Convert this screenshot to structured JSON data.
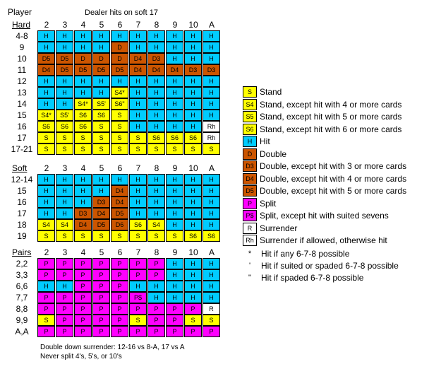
{
  "player_label": "Player",
  "title": "Dealer hits on soft 17",
  "dealer_cards": [
    "2",
    "3",
    "4",
    "5",
    "6",
    "7",
    "8",
    "9",
    "10",
    "A"
  ],
  "colors": {
    "S": "#ffff00",
    "H": "#00ccff",
    "D": "#cc5500",
    "P": "#ff00ff",
    "R": "#ffffff"
  },
  "sections": [
    {
      "name": "Hard",
      "rows": [
        {
          "label": "4-8",
          "cells": [
            "H",
            "H",
            "H",
            "H",
            "H",
            "H",
            "H",
            "H",
            "H",
            "H"
          ]
        },
        {
          "label": "9",
          "cells": [
            "H",
            "H",
            "H",
            "H",
            "D",
            "H",
            "H",
            "H",
            "H",
            "H"
          ]
        },
        {
          "label": "10",
          "cells": [
            "D5",
            "D5",
            "D",
            "D",
            "D",
            "D4",
            "D3",
            "H",
            "H",
            "H"
          ]
        },
        {
          "label": "11",
          "cells": [
            "D4",
            "D5",
            "D5",
            "D5",
            "D5",
            "D4",
            "D4",
            "D4",
            "D3",
            "D3"
          ]
        },
        {
          "label": "12",
          "cells": [
            "H",
            "H",
            "H",
            "H",
            "H",
            "H",
            "H",
            "H",
            "H",
            "H"
          ]
        },
        {
          "label": "13",
          "cells": [
            "H",
            "H",
            "H",
            "H",
            "S4*",
            "H",
            "H",
            "H",
            "H",
            "H"
          ]
        },
        {
          "label": "14",
          "cells": [
            "H",
            "H",
            "S4*",
            "S5'",
            "S6\"",
            "H",
            "H",
            "H",
            "H",
            "H"
          ]
        },
        {
          "label": "15",
          "cells": [
            "S4*",
            "S5'",
            "S6",
            "S6",
            "S",
            "H",
            "H",
            "H",
            "H",
            "H"
          ]
        },
        {
          "label": "16",
          "cells": [
            "S6",
            "S6",
            "S6",
            "S",
            "S",
            "H",
            "H",
            "H",
            "H",
            "Rh"
          ]
        },
        {
          "label": "17",
          "cells": [
            "S",
            "S",
            "S",
            "S",
            "S",
            "S",
            "S6",
            "S6",
            "S6",
            "Rh"
          ]
        },
        {
          "label": "17-21",
          "cells": [
            "S",
            "S",
            "S",
            "S",
            "S",
            "S",
            "S",
            "S",
            "S",
            "S"
          ]
        }
      ]
    },
    {
      "name": "Soft",
      "rows": [
        {
          "label": "12-14",
          "cells": [
            "H",
            "H",
            "H",
            "H",
            "H",
            "H",
            "H",
            "H",
            "H",
            "H"
          ]
        },
        {
          "label": "15",
          "cells": [
            "H",
            "H",
            "H",
            "H",
            "D4",
            "H",
            "H",
            "H",
            "H",
            "H"
          ]
        },
        {
          "label": "16",
          "cells": [
            "H",
            "H",
            "H",
            "D3",
            "D4",
            "H",
            "H",
            "H",
            "H",
            "H"
          ]
        },
        {
          "label": "17",
          "cells": [
            "H",
            "H",
            "D3",
            "D4",
            "D5",
            "H",
            "H",
            "H",
            "H",
            "H"
          ]
        },
        {
          "label": "18",
          "cells": [
            "S4",
            "S4",
            "D4",
            "D5",
            "D6",
            "S6",
            "S4",
            "H",
            "H",
            "H"
          ]
        },
        {
          "label": "19",
          "cells": [
            "S",
            "S",
            "S",
            "S",
            "S",
            "S",
            "S",
            "S",
            "S6",
            "S6"
          ]
        }
      ]
    },
    {
      "name": "Pairs",
      "rows": [
        {
          "label": "2,2",
          "cells": [
            "P",
            "P",
            "P",
            "P",
            "P",
            "P",
            "P",
            "H",
            "H",
            "H"
          ]
        },
        {
          "label": "3,3",
          "cells": [
            "P",
            "P",
            "P",
            "P",
            "P",
            "P",
            "P",
            "H",
            "H",
            "H"
          ]
        },
        {
          "label": "6,6",
          "cells": [
            "H",
            "H",
            "P",
            "P",
            "P",
            "H",
            "H",
            "H",
            "H",
            "H"
          ]
        },
        {
          "label": "7,7",
          "cells": [
            "P",
            "P",
            "P",
            "P",
            "P",
            "P$",
            "H",
            "H",
            "H",
            "H"
          ]
        },
        {
          "label": "8,8",
          "cells": [
            "P",
            "P",
            "P",
            "P",
            "P",
            "P",
            "P",
            "P",
            "P",
            "R"
          ]
        },
        {
          "label": "9,9",
          "cells": [
            "S",
            "P",
            "P",
            "P",
            "P",
            "S",
            "P",
            "P",
            "S",
            "S"
          ]
        },
        {
          "label": "A,A",
          "cells": [
            "P",
            "P",
            "P",
            "P",
            "P",
            "P",
            "P",
            "P",
            "P",
            "P"
          ]
        }
      ]
    }
  ],
  "legend": [
    {
      "code": "S",
      "type": "S",
      "text": "Stand"
    },
    {
      "code": "S4",
      "type": "S",
      "text": "Stand, except hit with 4 or more cards"
    },
    {
      "code": "S5",
      "type": "S",
      "text": "Stand, except hit with 5 or more cards"
    },
    {
      "code": "S6",
      "type": "S",
      "text": "Stand, except hit with 6 or more cards"
    },
    {
      "code": "H",
      "type": "H",
      "text": "Hit"
    },
    {
      "code": "D",
      "type": "D",
      "text": "Double"
    },
    {
      "code": "D3",
      "type": "D",
      "text": "Double, except hit with 3 or more cards"
    },
    {
      "code": "D4",
      "type": "D",
      "text": "Double, except hit with 4 or more cards"
    },
    {
      "code": "D5",
      "type": "D",
      "text": "Double, except hit with 5 or more cards"
    },
    {
      "code": "P",
      "type": "P",
      "text": "Split"
    },
    {
      "code": "P$",
      "type": "P",
      "text": "Split, except hit with suited sevens"
    },
    {
      "code": "R",
      "type": "R",
      "text": "Surrender"
    },
    {
      "code": "Rh",
      "type": "R",
      "text": "Surrender if allowed, otherwise hit"
    }
  ],
  "symbols": [
    {
      "sym": "*",
      "text": "Hit if any 6-7-8 possible"
    },
    {
      "sym": "'",
      "text": "Hit if suited or spaded 6-7-8 possible"
    },
    {
      "sym": "\"",
      "text": "Hit if spaded 6-7-8 possible"
    }
  ],
  "footnotes": [
    "Double down surrender:  12-16 vs 8-A, 17 vs A",
    "Never split 4's, 5's, or 10's"
  ]
}
